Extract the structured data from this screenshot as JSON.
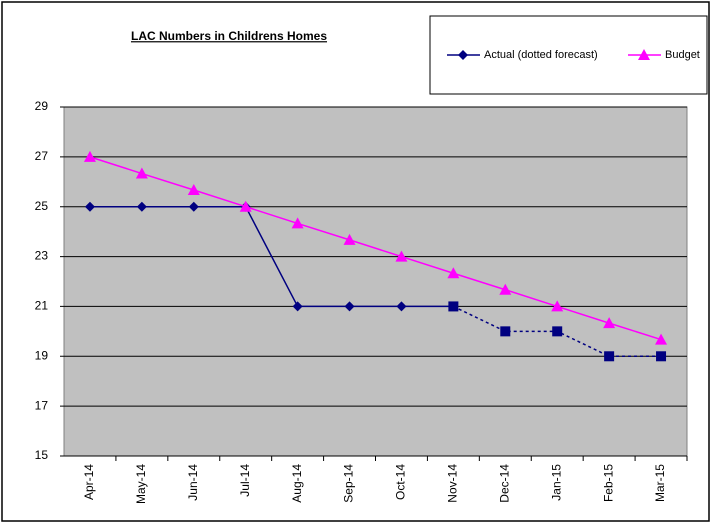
{
  "chart_data": {
    "type": "line",
    "title": "LAC Numbers in Childrens Homes",
    "categories": [
      "Apr-14",
      "May-14",
      "Jun-14",
      "Jul-14",
      "Aug-14",
      "Sep-14",
      "Oct-14",
      "Nov-14",
      "Dec-14",
      "Jan-15",
      "Feb-15",
      "Mar-15"
    ],
    "series": [
      {
        "name": "Actual (dotted forecast)",
        "color": "#000080",
        "values": [
          25,
          25,
          25,
          25,
          21,
          21,
          21,
          21,
          20,
          20,
          19,
          19
        ],
        "dashed_from": 7
      },
      {
        "name": "Budget",
        "color": "#ff00ff",
        "values": [
          27,
          26.33,
          25.67,
          25,
          24.33,
          23.67,
          23,
          22.33,
          21.67,
          21,
          20.33,
          19.67
        ]
      }
    ],
    "ylim": [
      15,
      29
    ],
    "yticks": [
      15,
      17,
      19,
      21,
      23,
      25,
      27,
      29
    ],
    "grid": true,
    "legend": "top-right"
  }
}
